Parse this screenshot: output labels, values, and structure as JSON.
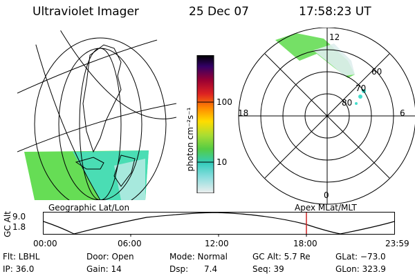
{
  "header": {
    "title": "Ultraviolet Imager",
    "date": "25 Dec 07",
    "time": "17:58:23 UT"
  },
  "colorbar": {
    "label": "photon cm⁻²s⁻¹",
    "ticks": [
      "100",
      "10"
    ]
  },
  "polar_plot": {
    "top_label": "12",
    "bottom_label": "0",
    "left_label": "18",
    "right_label": "6",
    "lat_labels": [
      "60",
      "70",
      "80"
    ]
  },
  "panel_titles": {
    "left": "Geographic Lat/Lon",
    "right": "Apex  MLat/MLT"
  },
  "altitude_plot": {
    "axis_label": "GC Alt",
    "y_ticks": [
      "9.0",
      "1.8"
    ],
    "x_ticks": [
      "00:00",
      "06:00",
      "12:00",
      "18:00",
      "23:59"
    ],
    "current_time_marker": "18:00"
  },
  "info_rows": [
    [
      "Flt: LBHL",
      "Door: Open",
      "Mode: Normal",
      "GC Alt: 5.7 Re",
      "GLat: −73.0"
    ],
    [
      "IP: 36.0",
      "Gain: 14",
      "Dsp:      7.4",
      "Seq: 39",
      "GLon: 323.9"
    ]
  ],
  "colors": {
    "aurora_green": "#66dd55",
    "aurora_cyan": "#44ddcc",
    "marker_red": "#cc2222"
  }
}
